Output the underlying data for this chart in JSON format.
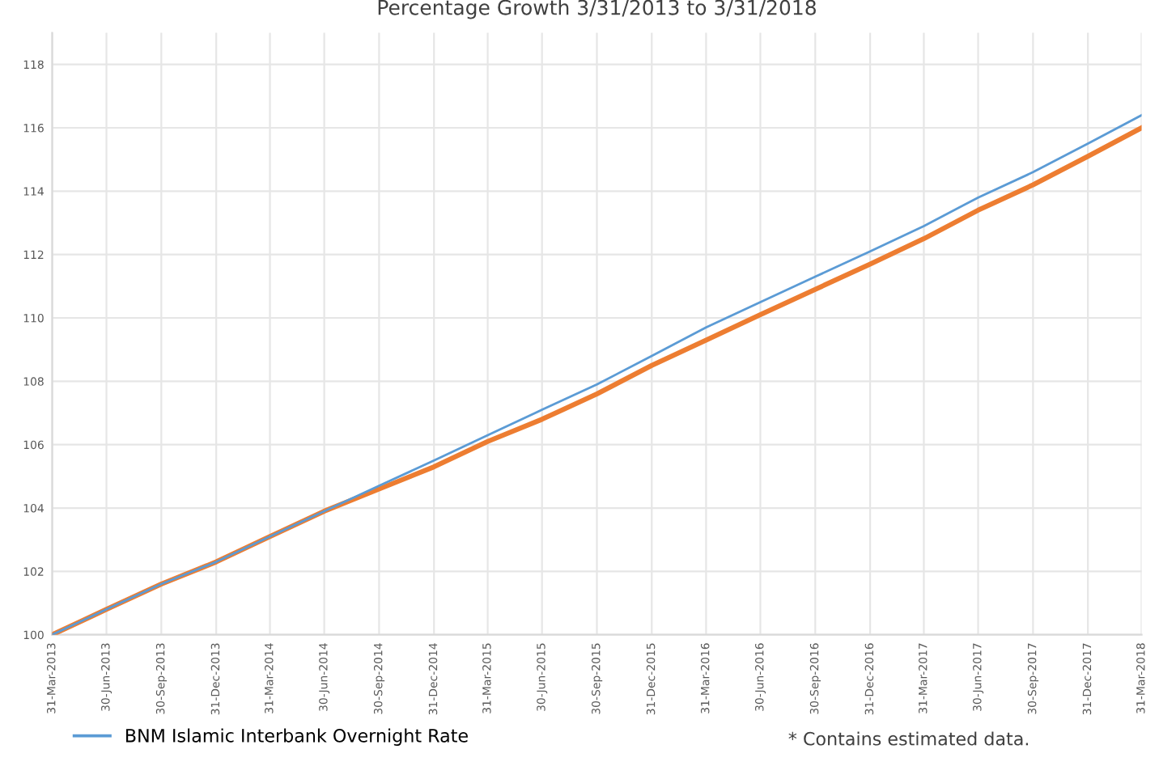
{
  "chart_data": {
    "type": "line",
    "title": "Percentage Growth 3/31/2013 to 3/31/2018",
    "x": [
      "2013-03-31",
      "2013-06-30",
      "2013-09-30",
      "2013-12-31",
      "2014-03-31",
      "2014-06-30",
      "2014-09-30",
      "2014-12-31",
      "2015-03-31",
      "2015-06-30",
      "2015-09-30",
      "2015-12-31",
      "2016-03-31",
      "2016-06-30",
      "2016-09-30",
      "2016-12-31",
      "2017-03-31",
      "2017-06-30",
      "2017-09-30",
      "2017-12-31",
      "2018-03-31"
    ],
    "series": [
      {
        "name": "BNM Islamic Interbank Overnight Rate",
        "color": "#5b9bd5",
        "values": [
          100,
          100.8,
          101.6,
          102.3,
          103.1,
          103.9,
          104.7,
          105.5,
          106.3,
          107.1,
          107.9,
          108.8,
          109.7,
          110.5,
          111.3,
          112.1,
          112.9,
          113.8,
          114.6,
          115.5,
          116.4
        ]
      },
      {
        "color": "#ed7d31",
        "values": [
          100,
          100.8,
          101.6,
          102.3,
          103.1,
          103.9,
          104.6,
          105.3,
          106.1,
          106.8,
          107.6,
          108.5,
          109.3,
          110.1,
          110.9,
          111.7,
          112.5,
          113.4,
          114.2,
          115.1,
          116.0
        ]
      }
    ],
    "xlim": [
      "2013-03-31",
      "2018-03-31"
    ],
    "xticks": [
      {
        "value": "2013-03-31",
        "label": "31-Mar-2013"
      },
      {
        "value": "2013-06-30",
        "label": "30-Jun-2013"
      },
      {
        "value": "2013-09-30",
        "label": "30-Sep-2013"
      },
      {
        "value": "2013-12-31",
        "label": "31-Dec-2013"
      },
      {
        "value": "2014-03-31",
        "label": "31-Mar-2014"
      },
      {
        "value": "2014-06-30",
        "label": "30-Jun-2014"
      },
      {
        "value": "2014-09-30",
        "label": "30-Sep-2014"
      },
      {
        "value": "2014-12-31",
        "label": "31-Dec-2014"
      },
      {
        "value": "2015-03-31",
        "label": "31-Mar-2015"
      },
      {
        "value": "2015-06-30",
        "label": "30-Jun-2015"
      },
      {
        "value": "2015-09-30",
        "label": "30-Sep-2015"
      },
      {
        "value": "2015-12-31",
        "label": "31-Dec-2015"
      },
      {
        "value": "2016-03-31",
        "label": "31-Mar-2016"
      },
      {
        "value": "2016-06-30",
        "label": "30-Jun-2016"
      },
      {
        "value": "2016-09-30",
        "label": "30-Sep-2016"
      },
      {
        "value": "2016-12-31",
        "label": "31-Dec-2016"
      },
      {
        "value": "2017-03-31",
        "label": "31-Mar-2017"
      },
      {
        "value": "2017-06-30",
        "label": "30-Jun-2017"
      },
      {
        "value": "2017-09-30",
        "label": "30-Sep-2017"
      },
      {
        "value": "2017-12-31",
        "label": "31-Dec-2017"
      },
      {
        "value": "2018-03-31",
        "label": "31-Mar-2018"
      }
    ],
    "ylim": [
      100,
      119
    ],
    "yticks": [
      100,
      102,
      104,
      106,
      108,
      110,
      112,
      114,
      116,
      118
    ],
    "grid": true,
    "legend": "bottom",
    "marker": "none",
    "line_style": "solid",
    "annotations": [
      "* Contains estimated data."
    ]
  }
}
